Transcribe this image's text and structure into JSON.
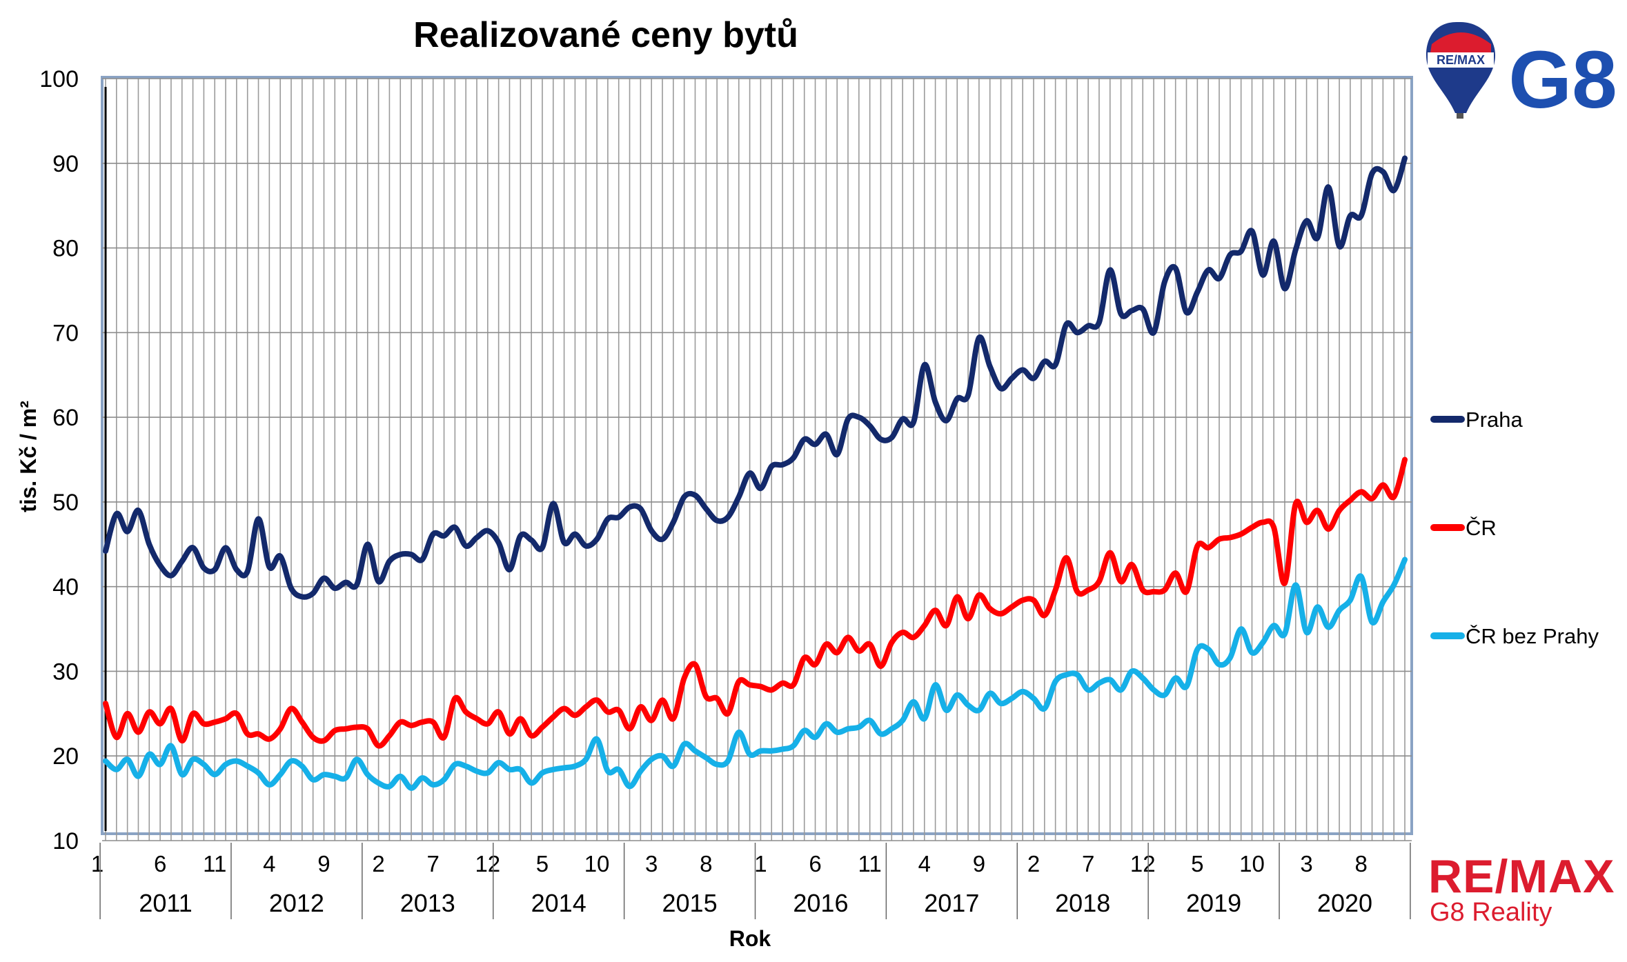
{
  "chart_data": {
    "type": "line",
    "title": "Realizované ceny bytů",
    "xlabel": "Rok",
    "ylabel": "tis. Kč / m²",
    "ylim": [
      10,
      100
    ],
    "yticks": [
      10,
      20,
      30,
      40,
      50,
      60,
      70,
      80,
      90,
      100
    ],
    "years": [
      "2011",
      "2012",
      "2013",
      "2014",
      "2015",
      "2016",
      "2017",
      "2018",
      "2019",
      "2020"
    ],
    "month_ticks": [
      "1",
      "6",
      "11",
      "4",
      "9",
      "2",
      "7",
      "12",
      "5",
      "10",
      "3",
      "8",
      "1",
      "6",
      "11",
      "4",
      "9",
      "2",
      "7",
      "12",
      "5",
      "10",
      "3",
      "8"
    ],
    "grid": true,
    "legend_position": "right",
    "colors": {
      "Praha": "#13296b",
      "ČR": "#ff0000",
      "ČR bez Prahy": "#16b0e8"
    },
    "series": [
      {
        "name": "Praha",
        "values": [
          44.2,
          48.6,
          46.5,
          49.0,
          45.0,
          42.5,
          41.3,
          43.0,
          44.6,
          42.2,
          42.0,
          44.6,
          42.0,
          41.8,
          48.0,
          42.3,
          43.6,
          39.8,
          38.8,
          39.2,
          41.0,
          39.8,
          40.5,
          40.2,
          45.0,
          40.6,
          43.0,
          43.8,
          43.8,
          43.2,
          46.2,
          46.0,
          47.0,
          44.8,
          45.8,
          46.6,
          45.2,
          42.0,
          46.0,
          45.5,
          44.6,
          49.8,
          45.2,
          46.2,
          44.8,
          45.6,
          48.0,
          48.2,
          49.4,
          49.2,
          46.6,
          45.6,
          47.6,
          50.6,
          50.8,
          49.2,
          47.8,
          48.2,
          50.6,
          53.4,
          51.6,
          54.2,
          54.4,
          55.2,
          57.4,
          56.8,
          58.0,
          55.6,
          59.8,
          60.0,
          59.0,
          57.4,
          57.6,
          59.8,
          59.4,
          66.2,
          61.8,
          59.6,
          62.2,
          62.6,
          69.4,
          66.0,
          63.4,
          64.6,
          65.6,
          64.6,
          66.6,
          66.2,
          71.0,
          70.0,
          70.8,
          71.2,
          77.4,
          72.2,
          72.6,
          72.8,
          70.0,
          76.0,
          77.6,
          72.4,
          74.8,
          77.4,
          76.4,
          79.2,
          79.6,
          82.0,
          76.8,
          80.8,
          75.2,
          79.8,
          83.2,
          81.2,
          87.2,
          80.2,
          83.8,
          83.8,
          88.8,
          89.0,
          86.8,
          90.6
        ]
      },
      {
        "name": "ČR",
        "values": [
          26.2,
          22.2,
          25.0,
          22.8,
          25.2,
          23.8,
          25.6,
          21.8,
          25.0,
          23.8,
          24.0,
          24.4,
          25.0,
          22.6,
          22.6,
          22.0,
          23.2,
          25.6,
          24.0,
          22.2,
          21.8,
          23.0,
          23.2,
          23.4,
          23.2,
          21.2,
          22.4,
          24.0,
          23.6,
          24.0,
          24.0,
          22.2,
          26.8,
          25.2,
          24.4,
          23.8,
          25.2,
          22.6,
          24.4,
          22.4,
          23.4,
          24.6,
          25.6,
          24.8,
          25.8,
          26.6,
          25.2,
          25.4,
          23.2,
          25.8,
          24.2,
          26.6,
          24.4,
          29.2,
          30.8,
          27.0,
          26.8,
          25.0,
          28.8,
          28.4,
          28.2,
          27.8,
          28.6,
          28.4,
          31.6,
          30.8,
          33.2,
          32.2,
          34.0,
          32.4,
          33.2,
          30.6,
          33.4,
          34.6,
          34.0,
          35.4,
          37.2,
          35.4,
          38.8,
          36.2,
          39.0,
          37.4,
          36.8,
          37.6,
          38.4,
          38.4,
          36.6,
          39.6,
          43.4,
          39.4,
          39.6,
          40.6,
          44.0,
          40.6,
          42.6,
          39.6,
          39.4,
          39.6,
          41.6,
          39.4,
          44.8,
          44.6,
          45.6,
          45.8,
          46.2,
          47.0,
          47.6,
          47.0,
          40.4,
          49.8,
          47.6,
          49.0,
          46.8,
          49.0,
          50.2,
          51.2,
          50.4,
          52.0,
          50.6,
          55.0
        ]
      },
      {
        "name": "ČR bez Prahy",
        "values": [
          19.4,
          18.4,
          19.6,
          17.6,
          20.2,
          19.0,
          21.2,
          17.8,
          19.6,
          19.0,
          17.8,
          19.0,
          19.4,
          18.8,
          18.0,
          16.6,
          17.8,
          19.4,
          18.8,
          17.2,
          17.8,
          17.6,
          17.4,
          19.6,
          17.8,
          16.8,
          16.4,
          17.6,
          16.2,
          17.4,
          16.6,
          17.2,
          19.0,
          18.8,
          18.2,
          18.0,
          19.2,
          18.4,
          18.4,
          16.8,
          18.0,
          18.4,
          18.6,
          18.8,
          19.6,
          22.0,
          18.2,
          18.4,
          16.4,
          18.2,
          19.6,
          20.0,
          18.8,
          21.4,
          20.6,
          19.8,
          19.0,
          19.4,
          22.8,
          20.2,
          20.6,
          20.6,
          20.8,
          21.2,
          23.0,
          22.2,
          23.8,
          22.8,
          23.2,
          23.4,
          24.2,
          22.6,
          23.2,
          24.2,
          26.4,
          24.4,
          28.4,
          25.4,
          27.2,
          26.0,
          25.4,
          27.4,
          26.2,
          26.8,
          27.6,
          26.8,
          25.6,
          28.8,
          29.6,
          29.6,
          27.8,
          28.6,
          29.0,
          27.8,
          30.0,
          29.2,
          27.8,
          27.2,
          29.2,
          28.2,
          32.6,
          32.6,
          30.8,
          31.6,
          35.0,
          32.2,
          33.4,
          35.4,
          34.4,
          40.2,
          34.6,
          37.6,
          35.2,
          37.2,
          38.4,
          41.2,
          35.8,
          38.2,
          40.2,
          43.2
        ]
      }
    ]
  },
  "logos": {
    "top": {
      "balloon_text": "RE/MAX",
      "brand": "G8"
    },
    "bottom": {
      "remax": "RE/MAX",
      "company": "G8 Reality"
    }
  }
}
